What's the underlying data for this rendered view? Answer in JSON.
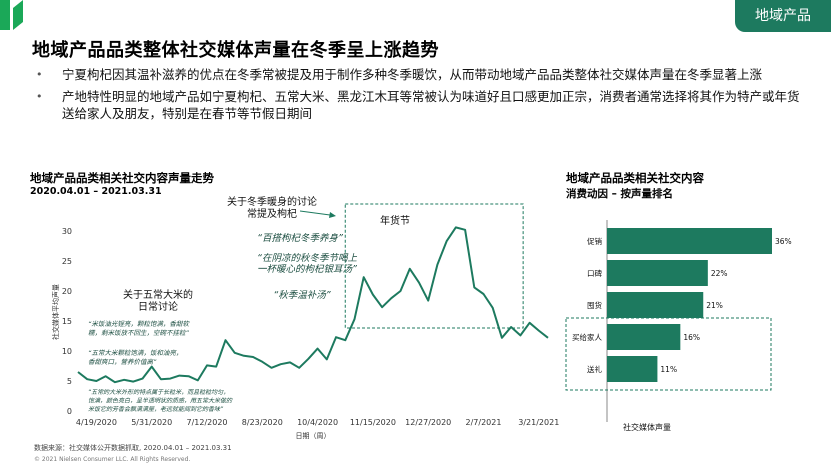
{
  "header": {
    "section_tag": "地域产品",
    "title": "地域产品品类整体社交媒体声量在冬季呈上涨趋势",
    "bullets": [
      "宁夏枸杞因其温补滋养的优点在冬季常被提及用于制作多种冬季暖饮，从而带动地域产品品类整体社交媒体声量在冬季显著上涨",
      "产地特性明显的地域产品如宁夏枸杞、五常大米、黑龙江木耳等常被认为味道好且口感更加正宗，消费者通常选择将其作为特产或年货送给家人及朋友，特别是在春节等节假日期间"
    ]
  },
  "left_chart": {
    "title": "地域产品品类相关社交内容声量走势",
    "subtitle": "2020.04.01 – 2021.03.31"
  },
  "right_chart": {
    "title": "地域产品品类相关社交内容",
    "subtitle": "消费动因 – 按声量排名"
  },
  "annotations": {
    "winter_head": "关于冬季暖身的讨论\n常提及枸杞",
    "winter_quotes": [
      "“百搭枸杞冬季养身”",
      "“在阴凉的秋冬季节喝上\n一杯暖心的枸杞银耳汤”",
      "“秋季温补汤”"
    ],
    "rice_head": "关于五常大米的\n日常讨论",
    "rice_quotes": [
      "“米饭油光锃亮，颗粒饱满，香甜软\n糯，剩米饭放不回生，空碗不挂粒”",
      "“五常大米颗粒饱满，饭和油亮，\n香甜爽口，营养价值高”",
      "“五常的大米外形的特点属于长粒米，而且粒粒均匀，\n饱满，颜色亮白，呈半透明状的质感，用五常大米做的\n米饭它的芳香会飘满满屋，老远就能闻到它的香味”"
    ],
    "newyear": "年货节"
  },
  "chart_data": [
    {
      "type": "line",
      "title": "",
      "xlabel": "日期（周）",
      "ylabel": "社交媒体平均声量",
      "ylim": [
        0,
        33
      ],
      "yticks": [
        0,
        5,
        10,
        15,
        20,
        25,
        30
      ],
      "x_tick_labels": [
        "4/19/2020",
        "5/31/2020",
        "7/12/2020",
        "8/23/2020",
        "10/4/2020",
        "11/15/2020",
        "12/27/2020",
        "2/7/2021",
        "3/21/2021"
      ],
      "x": [
        "4/5/2020",
        "4/12/2020",
        "4/19/2020",
        "4/26/2020",
        "5/3/2020",
        "5/10/2020",
        "5/17/2020",
        "5/24/2020",
        "5/31/2020",
        "6/7/2020",
        "6/14/2020",
        "6/21/2020",
        "6/28/2020",
        "7/5/2020",
        "7/12/2020",
        "7/19/2020",
        "7/26/2020",
        "8/2/2020",
        "8/9/2020",
        "8/16/2020",
        "8/23/2020",
        "8/30/2020",
        "9/6/2020",
        "9/13/2020",
        "9/20/2020",
        "9/27/2020",
        "10/4/2020",
        "10/11/2020",
        "10/18/2020",
        "10/25/2020",
        "11/1/2020",
        "11/8/2020",
        "11/15/2020",
        "11/22/2020",
        "11/29/2020",
        "12/6/2020",
        "12/13/2020",
        "12/20/2020",
        "12/27/2020",
        "1/3/2021",
        "1/10/2021",
        "1/17/2021",
        "1/24/2021",
        "1/31/2021",
        "2/7/2021",
        "2/14/2021",
        "2/21/2021",
        "2/28/2021",
        "3/7/2021",
        "3/14/2021",
        "3/21/2021",
        "3/28/2021"
      ],
      "y": [
        6.5,
        5.3,
        5,
        5.8,
        4.8,
        5.2,
        4.9,
        5.4,
        7.4,
        5.3,
        5.4,
        5.9,
        5.8,
        5.1,
        7.6,
        7.4,
        11.8,
        9.7,
        9.2,
        9,
        8.2,
        7.2,
        7.8,
        8.1,
        7.2,
        8.7,
        10.4,
        8.6,
        12.3,
        11.8,
        15.3,
        22.3,
        19.4,
        17.3,
        18.8,
        20,
        23.7,
        21.4,
        18.4,
        24.4,
        28.3,
        30.6,
        30.2,
        20.6,
        19.5,
        17.2,
        12.2,
        14,
        12.6,
        14.7,
        13.4,
        12.2
      ]
    },
    {
      "type": "bar",
      "orientation": "horizontal",
      "xlabel": "社交媒体声量",
      "categories": [
        "促销",
        "口碑",
        "囤货",
        "买给家人",
        "送礼"
      ],
      "values": [
        36,
        22,
        21,
        16,
        11
      ],
      "value_labels": [
        "36%",
        "22%",
        "21%",
        "16%",
        "11%"
      ],
      "color": "#1d7a5f",
      "highlighted": [
        "买给家人",
        "送礼"
      ]
    }
  ],
  "footer": {
    "source": "数据来源：社交媒体公开数据抓取, 2020.04.01 – 2021.03.31",
    "copyright": "© 2021 Nielsen Consumer LLC. All Rights Reserved."
  },
  "colors": {
    "brand": "#1d7a5f",
    "logo": "#1ba858",
    "line": "#1d7a5f",
    "annotation": "#1d7a5f",
    "dashed_box": "#1d7a5f"
  }
}
